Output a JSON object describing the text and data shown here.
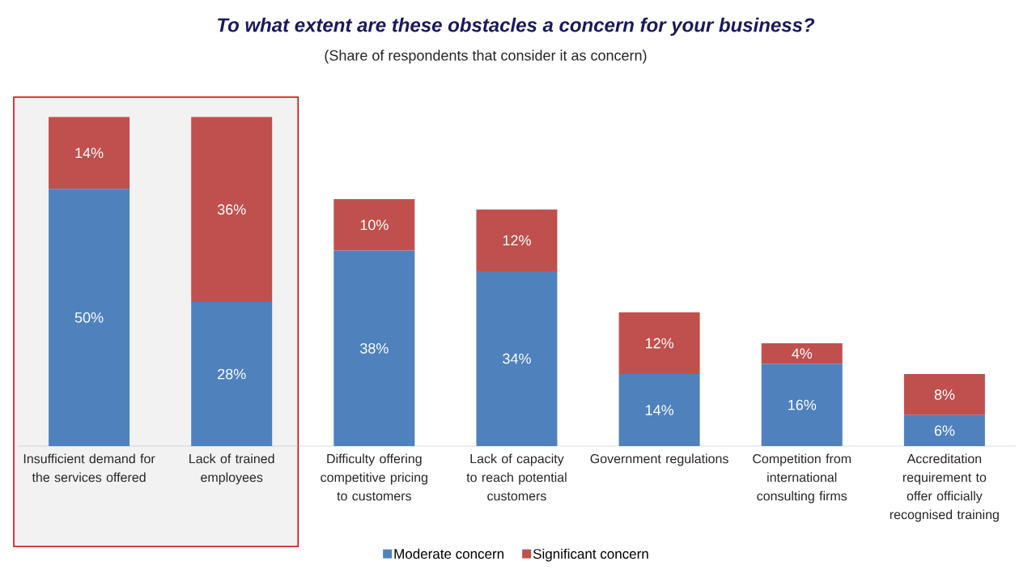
{
  "chart_data": {
    "type": "bar",
    "stacked": true,
    "title": "To what extent are these obstacles a concern for your business?",
    "subtitle": "(Share of respondents that consider it as concern)",
    "categories": [
      "Insufficient demand for the services offered",
      "Lack of trained employees",
      "Difficulty offering competitive pricing to customers",
      "Lack of capacity to reach potential customers",
      "Government regulations",
      "Competition from international consulting firms",
      "Accreditation requirement to offer officially recognised training"
    ],
    "series": [
      {
        "name": "Moderate concern",
        "color": "#4f81bd",
        "values": [
          50,
          28,
          38,
          34,
          14,
          16,
          6
        ],
        "value_labels": [
          "50%",
          "28%",
          "38%",
          "34%",
          "14%",
          "16%",
          "6%"
        ]
      },
      {
        "name": "Significant concern",
        "color": "#c0504d",
        "values": [
          14,
          36,
          10,
          12,
          12,
          4,
          8
        ],
        "value_labels": [
          "14%",
          "36%",
          "10%",
          "12%",
          "12%",
          "4%",
          "8%"
        ]
      }
    ],
    "bands": [
      {
        "axis": "x",
        "from": "Insufficient demand for the services offered",
        "to": "Lack of trained employees",
        "color": "#f2f2f2"
      }
    ],
    "legend": "bottom"
  }
}
